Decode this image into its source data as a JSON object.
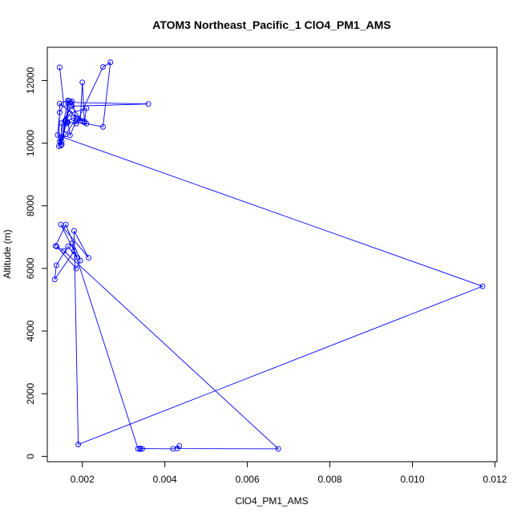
{
  "chart_data": {
    "type": "line",
    "title": "ATOM3 Northeast_Pacific_1 ClO4_PM1_AMS",
    "xlabel": "ClO4_PM1_AMS",
    "ylabel": "Altitude (m)",
    "xlim": [
      0.00115,
      0.01205
    ],
    "ylim": [
      -170,
      13060
    ],
    "x_ticks": [
      0.002,
      0.004,
      0.006,
      0.008,
      0.01,
      0.012
    ],
    "x_tick_labels": [
      "0.002",
      "0.004",
      "0.006",
      "0.008",
      "0.010",
      "0.012"
    ],
    "y_ticks": [
      0,
      2000,
      4000,
      6000,
      8000,
      10000,
      12000
    ],
    "y_tick_labels": [
      "0",
      "2000",
      "4000",
      "6000",
      "8000",
      "10000",
      "12000"
    ],
    "grid": false,
    "series_color": "#0000FF",
    "series": [
      {
        "style": "line+open-circle",
        "x": [
          0.00145,
          0.00155,
          0.00145,
          0.0014,
          0.0015,
          0.0016,
          0.00165,
          0.0017,
          0.00185,
          0.00195,
          0.002,
          0.00205,
          0.0021,
          0.0025,
          0.00268,
          0.0025,
          0.00185,
          0.00158,
          0.00148,
          0.0015,
          0.00175,
          0.0036,
          0.00172,
          0.0016,
          0.0017,
          0.0021,
          0.00205,
          0.00178,
          0.0016,
          0.00168,
          0.0015,
          0.00143,
          0.00145,
          0.002,
          0.00165,
          0.00145,
          0.0016,
          0.00185,
          0.00175,
          0.00165,
          0.00163,
          0.0015,
          0.0117,
          0.0019,
          0.0018,
          0.00215,
          0.00148,
          0.00188,
          0.00165,
          0.00137,
          0.00133,
          0.0018,
          0.00175,
          0.00335,
          0.0034,
          0.00345,
          0.0034,
          0.0042,
          0.00435,
          0.0043,
          0.00675,
          0.00155,
          0.00138,
          0.00185,
          0.00195,
          0.0016,
          0.00135
        ],
        "y": [
          12420,
          11250,
          10980,
          10260,
          9960,
          10620,
          10660,
          10250,
          10700,
          10720,
          11940,
          10660,
          10620,
          10520,
          12580,
          12430,
          10620,
          10720,
          9920,
          10640,
          11180,
          11250,
          11300,
          10700,
          10950,
          11110,
          10690,
          10800,
          10700,
          11350,
          10050,
          9900,
          11260,
          10700,
          11360,
          10050,
          10280,
          10800,
          11330,
          11360,
          10680,
          10200,
          5430,
          380,
          7200,
          6340,
          7400,
          6350,
          6700,
          6100,
          5650,
          6550,
          6800,
          240,
          230,
          240,
          250,
          240,
          330,
          250,
          240,
          6560,
          6700,
          6000,
          6250,
          7400,
          6720
        ]
      }
    ]
  }
}
